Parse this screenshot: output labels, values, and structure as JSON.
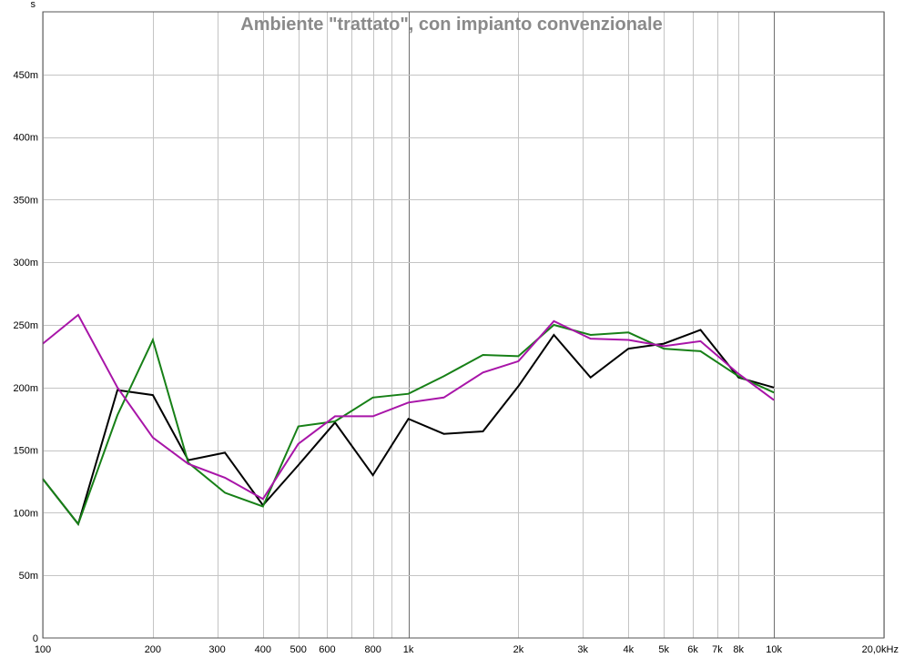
{
  "chart_data": {
    "type": "line",
    "title": "Ambiente \"trattato\", con impianto convenzionale",
    "ylabel": "s",
    "xlabel": "",
    "x_scale": "log",
    "xlim": [
      100,
      20000
    ],
    "ylim": [
      0,
      0.5
    ],
    "grid": true,
    "legend": "none",
    "x": [
      100,
      125,
      160,
      200,
      250,
      315,
      400,
      500,
      630,
      800,
      1000,
      1250,
      1600,
      2000,
      2500,
      3150,
      4000,
      5000,
      6300,
      8000,
      10000
    ],
    "series": [
      {
        "color": "#000000",
        "values": [
          0.127,
          0.091,
          0.198,
          0.194,
          0.142,
          0.148,
          0.106,
          0.138,
          0.172,
          0.13,
          0.175,
          0.163,
          0.165,
          0.201,
          0.242,
          0.208,
          0.231,
          0.235,
          0.246,
          0.208,
          0.2
        ]
      },
      {
        "color": "#178017",
        "values": [
          0.127,
          0.091,
          0.178,
          0.238,
          0.14,
          0.116,
          0.105,
          0.169,
          0.173,
          0.192,
          0.195,
          0.209,
          0.226,
          0.225,
          0.25,
          0.242,
          0.244,
          0.231,
          0.229,
          0.209,
          0.196
        ]
      },
      {
        "color": "#a815a8",
        "values": [
          0.235,
          0.258,
          0.2,
          0.16,
          0.139,
          0.128,
          0.111,
          0.155,
          0.177,
          0.177,
          0.188,
          0.192,
          0.212,
          0.221,
          0.253,
          0.239,
          0.238,
          0.233,
          0.237,
          0.211,
          0.19
        ]
      }
    ],
    "x_ticks": [
      {
        "value": 100,
        "label": "100"
      },
      {
        "value": 200,
        "label": "200"
      },
      {
        "value": 300,
        "label": "300"
      },
      {
        "value": 400,
        "label": "400"
      },
      {
        "value": 500,
        "label": "500"
      },
      {
        "value": 600,
        "label": "600"
      },
      {
        "value": 800,
        "label": "800"
      },
      {
        "value": 1000,
        "label": "1k"
      },
      {
        "value": 2000,
        "label": "2k"
      },
      {
        "value": 3000,
        "label": "3k"
      },
      {
        "value": 4000,
        "label": "4k"
      },
      {
        "value": 5000,
        "label": "5k"
      },
      {
        "value": 6000,
        "label": "6k"
      },
      {
        "value": 7000,
        "label": "7k"
      },
      {
        "value": 8000,
        "label": "8k"
      },
      {
        "value": 10000,
        "label": "10k"
      },
      {
        "value": 20000,
        "label": "20,0kHz"
      }
    ],
    "x_minor": [
      700,
      900
    ],
    "x_major": [
      1000,
      10000
    ],
    "y_ticks": [
      {
        "value": 0,
        "label": "0"
      },
      {
        "value": 0.05,
        "label": "50m"
      },
      {
        "value": 0.1,
        "label": "100m"
      },
      {
        "value": 0.15,
        "label": "150m"
      },
      {
        "value": 0.2,
        "label": "200m"
      },
      {
        "value": 0.25,
        "label": "250m"
      },
      {
        "value": 0.3,
        "label": "300m"
      },
      {
        "value": 0.35,
        "label": "350m"
      },
      {
        "value": 0.4,
        "label": "400m"
      },
      {
        "value": 0.45,
        "label": "450m"
      }
    ]
  }
}
